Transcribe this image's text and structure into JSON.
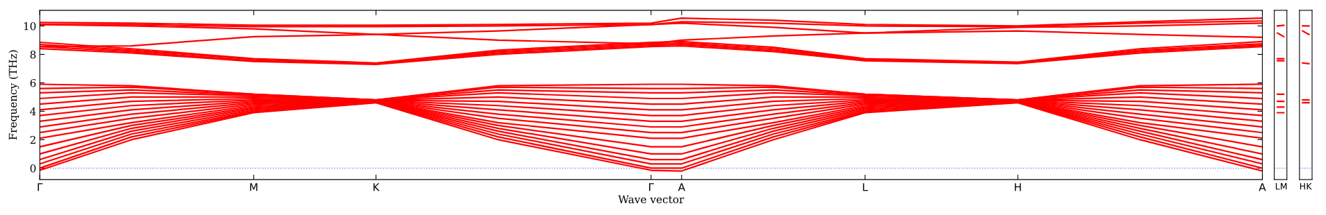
{
  "chart_data": [
    {
      "type": "line",
      "xlabel": "Wave vector",
      "ylabel": "Frequency (THz)",
      "grid": false,
      "marker": "none",
      "line_style": "solid",
      "categories": [
        "Γ",
        null,
        null,
        null,
        null,
        null,
        null,
        "M",
        null,
        null,
        null,
        "K",
        null,
        null,
        null,
        null,
        null,
        null,
        null,
        null,
        "Γ",
        "A",
        null,
        null,
        null,
        null,
        null,
        "L",
        null,
        null,
        null,
        null,
        "H",
        null,
        null,
        null,
        null,
        null,
        null,
        null,
        "A"
      ],
      "ylim": [
        -0.8,
        11.1
      ],
      "yticks": [
        0,
        2,
        4,
        6,
        8,
        10
      ],
      "ref_lines": [
        {
          "axis": "y",
          "value": 0,
          "color": "#8080ff",
          "line_style": "dotted"
        }
      ],
      "series": [
        {
          "color": "#ff0000",
          "values": [
            -0.15,
            null,
            null,
            2.0,
            null,
            null,
            null,
            3.9,
            null,
            null,
            null,
            4.6,
            null,
            null,
            null,
            2.0,
            null,
            null,
            null,
            null,
            -0.15,
            -0.2,
            null,
            null,
            2.0,
            null,
            null,
            3.9,
            null,
            null,
            null,
            null,
            4.6,
            null,
            null,
            null,
            2.0,
            null,
            null,
            null,
            -0.2
          ]
        },
        {
          "color": "#ff0000",
          "values": [
            0.0,
            null,
            null,
            2.2,
            null,
            null,
            null,
            3.95,
            null,
            null,
            null,
            4.62,
            null,
            null,
            null,
            2.2,
            null,
            null,
            null,
            null,
            0.0,
            0.0,
            null,
            null,
            2.2,
            null,
            null,
            3.95,
            null,
            null,
            null,
            null,
            4.62,
            null,
            null,
            null,
            2.2,
            null,
            null,
            null,
            0.0
          ]
        },
        {
          "color": "#ff0000",
          "values": [
            0.3,
            null,
            null,
            2.4,
            null,
            null,
            null,
            4.0,
            null,
            null,
            null,
            4.64,
            null,
            null,
            null,
            2.4,
            null,
            null,
            null,
            null,
            0.3,
            0.3,
            null,
            null,
            2.4,
            null,
            null,
            4.0,
            null,
            null,
            null,
            null,
            4.64,
            null,
            null,
            null,
            2.4,
            null,
            null,
            null,
            0.3
          ]
        },
        {
          "color": "#ff0000",
          "values": [
            0.6,
            null,
            null,
            2.6,
            null,
            null,
            null,
            4.1,
            null,
            null,
            null,
            4.66,
            null,
            null,
            null,
            2.6,
            null,
            null,
            null,
            null,
            0.6,
            0.6,
            null,
            null,
            2.6,
            null,
            null,
            4.1,
            null,
            null,
            null,
            null,
            4.66,
            null,
            null,
            null,
            2.6,
            null,
            null,
            null,
            0.6
          ]
        },
        {
          "color": "#ff0000",
          "values": [
            1.0,
            null,
            null,
            2.8,
            null,
            null,
            null,
            4.2,
            null,
            null,
            null,
            4.68,
            null,
            null,
            null,
            2.8,
            null,
            null,
            null,
            null,
            1.0,
            1.0,
            null,
            null,
            2.8,
            null,
            null,
            4.2,
            null,
            null,
            null,
            null,
            4.68,
            null,
            null,
            null,
            2.8,
            null,
            null,
            null,
            1.0
          ]
        },
        {
          "color": "#ff0000",
          "values": [
            1.5,
            null,
            null,
            3.0,
            null,
            null,
            null,
            4.3,
            null,
            null,
            null,
            4.7,
            null,
            null,
            null,
            3.0,
            null,
            null,
            null,
            null,
            1.5,
            1.5,
            null,
            null,
            3.0,
            null,
            null,
            4.3,
            null,
            null,
            null,
            null,
            4.7,
            null,
            null,
            null,
            3.0,
            null,
            null,
            null,
            1.5
          ]
        },
        {
          "color": "#ff0000",
          "values": [
            2.1,
            null,
            null,
            3.2,
            null,
            null,
            null,
            4.4,
            null,
            null,
            null,
            4.72,
            null,
            null,
            null,
            3.2,
            null,
            null,
            null,
            null,
            2.1,
            2.1,
            null,
            null,
            3.2,
            null,
            null,
            4.4,
            null,
            null,
            null,
            null,
            4.72,
            null,
            null,
            null,
            3.2,
            null,
            null,
            null,
            2.1
          ]
        },
        {
          "color": "#ff0000",
          "values": [
            2.5,
            null,
            null,
            3.5,
            null,
            null,
            null,
            4.5,
            null,
            null,
            null,
            4.73,
            null,
            null,
            null,
            3.5,
            null,
            null,
            null,
            null,
            2.5,
            2.5,
            null,
            null,
            3.5,
            null,
            null,
            4.5,
            null,
            null,
            null,
            null,
            4.73,
            null,
            null,
            null,
            3.5,
            null,
            null,
            null,
            2.5
          ]
        },
        {
          "color": "#ff0000",
          "values": [
            2.9,
            null,
            null,
            3.8,
            null,
            null,
            null,
            4.6,
            null,
            null,
            null,
            4.74,
            null,
            null,
            null,
            3.8,
            null,
            null,
            null,
            null,
            2.9,
            2.9,
            null,
            null,
            3.8,
            null,
            null,
            4.6,
            null,
            null,
            null,
            null,
            4.74,
            null,
            null,
            null,
            3.8,
            null,
            null,
            null,
            2.9
          ]
        },
        {
          "color": "#ff0000",
          "values": [
            3.3,
            null,
            null,
            4.1,
            null,
            null,
            null,
            4.7,
            null,
            null,
            null,
            4.75,
            null,
            null,
            null,
            4.1,
            null,
            null,
            null,
            null,
            3.3,
            3.3,
            null,
            null,
            4.1,
            null,
            null,
            4.7,
            null,
            null,
            null,
            null,
            4.75,
            null,
            null,
            null,
            4.1,
            null,
            null,
            null,
            3.3
          ]
        },
        {
          "color": "#ff0000",
          "values": [
            3.7,
            null,
            null,
            4.4,
            null,
            null,
            null,
            4.8,
            null,
            null,
            null,
            4.76,
            null,
            null,
            null,
            4.4,
            null,
            null,
            null,
            null,
            3.7,
            3.7,
            null,
            null,
            4.4,
            null,
            null,
            4.8,
            null,
            null,
            null,
            null,
            4.76,
            null,
            null,
            null,
            4.4,
            null,
            null,
            null,
            3.7
          ]
        },
        {
          "color": "#ff0000",
          "values": [
            4.1,
            null,
            null,
            4.7,
            null,
            null,
            null,
            4.9,
            null,
            null,
            null,
            4.77,
            null,
            null,
            null,
            4.7,
            null,
            null,
            null,
            null,
            4.1,
            4.1,
            null,
            null,
            4.7,
            null,
            null,
            4.9,
            null,
            null,
            null,
            null,
            4.77,
            null,
            null,
            null,
            4.7,
            null,
            null,
            null,
            4.1
          ]
        },
        {
          "color": "#ff0000",
          "values": [
            4.5,
            null,
            null,
            5.0,
            null,
            null,
            null,
            5.0,
            null,
            null,
            null,
            4.78,
            null,
            null,
            null,
            5.0,
            null,
            null,
            null,
            null,
            4.5,
            4.5,
            null,
            null,
            5.0,
            null,
            null,
            5.0,
            null,
            null,
            null,
            null,
            4.78,
            null,
            null,
            null,
            5.0,
            null,
            null,
            null,
            4.5
          ]
        },
        {
          "color": "#ff0000",
          "values": [
            4.9,
            null,
            null,
            5.3,
            null,
            null,
            null,
            5.1,
            null,
            null,
            null,
            4.79,
            null,
            null,
            null,
            5.3,
            null,
            null,
            null,
            null,
            4.9,
            4.9,
            null,
            null,
            5.3,
            null,
            null,
            5.1,
            null,
            null,
            null,
            null,
            4.79,
            null,
            null,
            null,
            5.3,
            null,
            null,
            null,
            4.9
          ]
        },
        {
          "color": "#ff0000",
          "values": [
            5.3,
            null,
            null,
            5.5,
            null,
            null,
            null,
            5.15,
            null,
            null,
            null,
            4.8,
            null,
            null,
            null,
            5.5,
            null,
            null,
            null,
            null,
            5.3,
            5.3,
            null,
            null,
            5.5,
            null,
            null,
            5.15,
            null,
            null,
            null,
            null,
            4.8,
            null,
            null,
            null,
            5.5,
            null,
            null,
            null,
            5.3
          ]
        },
        {
          "color": "#ff0000",
          "values": [
            5.6,
            null,
            null,
            5.7,
            null,
            null,
            null,
            5.2,
            null,
            null,
            null,
            4.8,
            null,
            null,
            null,
            5.7,
            null,
            null,
            null,
            null,
            5.6,
            5.6,
            null,
            null,
            5.7,
            null,
            null,
            5.2,
            null,
            null,
            null,
            null,
            4.8,
            null,
            null,
            null,
            5.7,
            null,
            null,
            null,
            5.6
          ]
        },
        {
          "color": "#ff0000",
          "values": [
            5.9,
            null,
            null,
            5.8,
            null,
            null,
            null,
            5.2,
            null,
            null,
            null,
            4.8,
            null,
            null,
            null,
            5.8,
            null,
            null,
            null,
            null,
            5.9,
            5.9,
            null,
            null,
            5.8,
            null,
            null,
            5.2,
            null,
            null,
            null,
            null,
            4.8,
            null,
            null,
            null,
            5.8,
            null,
            null,
            null,
            5.9
          ]
        },
        {
          "color": "#ff0000",
          "values": [
            8.4,
            null,
            null,
            8.1,
            null,
            null,
            null,
            7.5,
            null,
            null,
            null,
            7.3,
            null,
            null,
            null,
            8.0,
            null,
            null,
            null,
            null,
            8.55,
            8.6,
            null,
            null,
            8.2,
            null,
            null,
            7.55,
            null,
            null,
            null,
            null,
            7.35,
            null,
            null,
            null,
            8.1,
            null,
            null,
            null,
            8.55
          ]
        },
        {
          "color": "#ff0000",
          "values": [
            8.55,
            null,
            null,
            8.2,
            null,
            null,
            null,
            7.55,
            null,
            null,
            null,
            7.33,
            null,
            null,
            null,
            8.1,
            null,
            null,
            null,
            null,
            8.65,
            8.7,
            null,
            null,
            8.3,
            null,
            null,
            7.6,
            null,
            null,
            null,
            null,
            7.38,
            null,
            null,
            null,
            8.2,
            null,
            null,
            null,
            8.65
          ]
        },
        {
          "color": "#ff0000",
          "values": [
            8.7,
            null,
            null,
            8.3,
            null,
            null,
            null,
            7.65,
            null,
            null,
            null,
            7.37,
            null,
            null,
            null,
            8.2,
            null,
            null,
            null,
            null,
            8.75,
            8.8,
            null,
            null,
            8.4,
            null,
            null,
            7.65,
            null,
            null,
            null,
            null,
            7.42,
            null,
            null,
            null,
            8.3,
            null,
            null,
            null,
            8.75
          ]
        },
        {
          "color": "#ff0000",
          "values": [
            8.85,
            null,
            null,
            8.4,
            null,
            null,
            null,
            7.7,
            null,
            null,
            null,
            7.4,
            null,
            null,
            null,
            8.3,
            null,
            null,
            null,
            null,
            8.85,
            8.9,
            null,
            null,
            8.5,
            null,
            null,
            7.7,
            null,
            null,
            null,
            null,
            7.45,
            null,
            null,
            null,
            8.4,
            null,
            null,
            null,
            8.9
          ]
        },
        {
          "color": "#ff0000",
          "values": [
            10.25,
            null,
            null,
            10.2,
            null,
            null,
            null,
            10.05,
            null,
            null,
            null,
            10.05,
            null,
            null,
            null,
            10.1,
            null,
            null,
            null,
            null,
            10.2,
            10.55,
            null,
            null,
            10.4,
            null,
            null,
            10.1,
            null,
            null,
            null,
            null,
            10.0,
            null,
            null,
            null,
            10.3,
            null,
            null,
            null,
            10.55
          ]
        },
        {
          "color": "#ff0000",
          "values": [
            10.1,
            null,
            null,
            10.1,
            null,
            null,
            null,
            9.95,
            null,
            null,
            null,
            9.95,
            null,
            null,
            null,
            10.0,
            null,
            null,
            null,
            null,
            10.1,
            10.3,
            null,
            null,
            10.2,
            null,
            null,
            10.0,
            null,
            null,
            null,
            null,
            9.95,
            null,
            null,
            null,
            10.2,
            null,
            null,
            null,
            10.35
          ]
        },
        {
          "color": "#ff0000",
          "values": [
            10.1,
            null,
            null,
            10.0,
            null,
            null,
            null,
            9.8,
            null,
            null,
            null,
            9.4,
            null,
            null,
            null,
            9.0,
            null,
            null,
            null,
            null,
            8.75,
            9.0,
            null,
            null,
            9.3,
            null,
            null,
            9.5,
            null,
            null,
            null,
            null,
            9.65,
            null,
            null,
            null,
            9.4,
            null,
            null,
            null,
            9.2
          ]
        },
        {
          "color": "#ff0000",
          "values": [
            8.55,
            null,
            null,
            8.6,
            null,
            null,
            null,
            9.25,
            null,
            null,
            null,
            9.4,
            null,
            null,
            null,
            9.65,
            null,
            null,
            null,
            null,
            10.1,
            10.2,
            null,
            null,
            9.9,
            null,
            null,
            9.5,
            null,
            null,
            null,
            null,
            9.9,
            null,
            null,
            null,
            10.0,
            null,
            null,
            null,
            10.2
          ]
        }
      ]
    },
    {
      "type": "line",
      "tick_labels": "x",
      "grid": false,
      "marker": "none",
      "line_style": "solid",
      "categories": [
        "L",
        "M"
      ],
      "ylim": [
        -0.8,
        11.1
      ],
      "yticks": [
        0,
        2,
        4,
        6,
        8,
        10
      ],
      "ref_lines": [
        {
          "axis": "y",
          "value": 0,
          "color": "#8080ff",
          "line_style": "dotted"
        }
      ],
      "series": [
        {
          "color": "#ff0000",
          "values": [
            3.9,
            3.9
          ]
        },
        {
          "color": "#ff0000",
          "values": [
            4.3,
            4.3
          ]
        },
        {
          "color": "#ff0000",
          "values": [
            4.7,
            4.7
          ]
        },
        {
          "color": "#ff0000",
          "values": [
            5.2,
            5.2
          ]
        },
        {
          "color": "#ff0000",
          "values": [
            7.55,
            7.55
          ]
        },
        {
          "color": "#ff0000",
          "values": [
            7.7,
            7.7
          ]
        },
        {
          "color": "#ff0000",
          "values": [
            9.5,
            9.25
          ]
        },
        {
          "color": "#ff0000",
          "values": [
            10.0,
            10.05
          ]
        }
      ]
    },
    {
      "type": "line",
      "tick_labels": "x",
      "grid": false,
      "marker": "none",
      "line_style": "solid",
      "categories": [
        "H",
        "K"
      ],
      "ylim": [
        -0.8,
        11.1
      ],
      "yticks": [
        0,
        2,
        4,
        6,
        8,
        10
      ],
      "ref_lines": [
        {
          "axis": "y",
          "value": 0,
          "color": "#8080ff",
          "line_style": "dotted"
        }
      ],
      "series": [
        {
          "color": "#ff0000",
          "values": [
            4.6,
            4.6
          ]
        },
        {
          "color": "#ff0000",
          "values": [
            4.8,
            4.8
          ]
        },
        {
          "color": "#ff0000",
          "values": [
            7.4,
            7.35
          ]
        },
        {
          "color": "#ff0000",
          "values": [
            9.65,
            9.4
          ]
        },
        {
          "color": "#ff0000",
          "values": [
            10.0,
            10.0
          ]
        }
      ]
    }
  ]
}
